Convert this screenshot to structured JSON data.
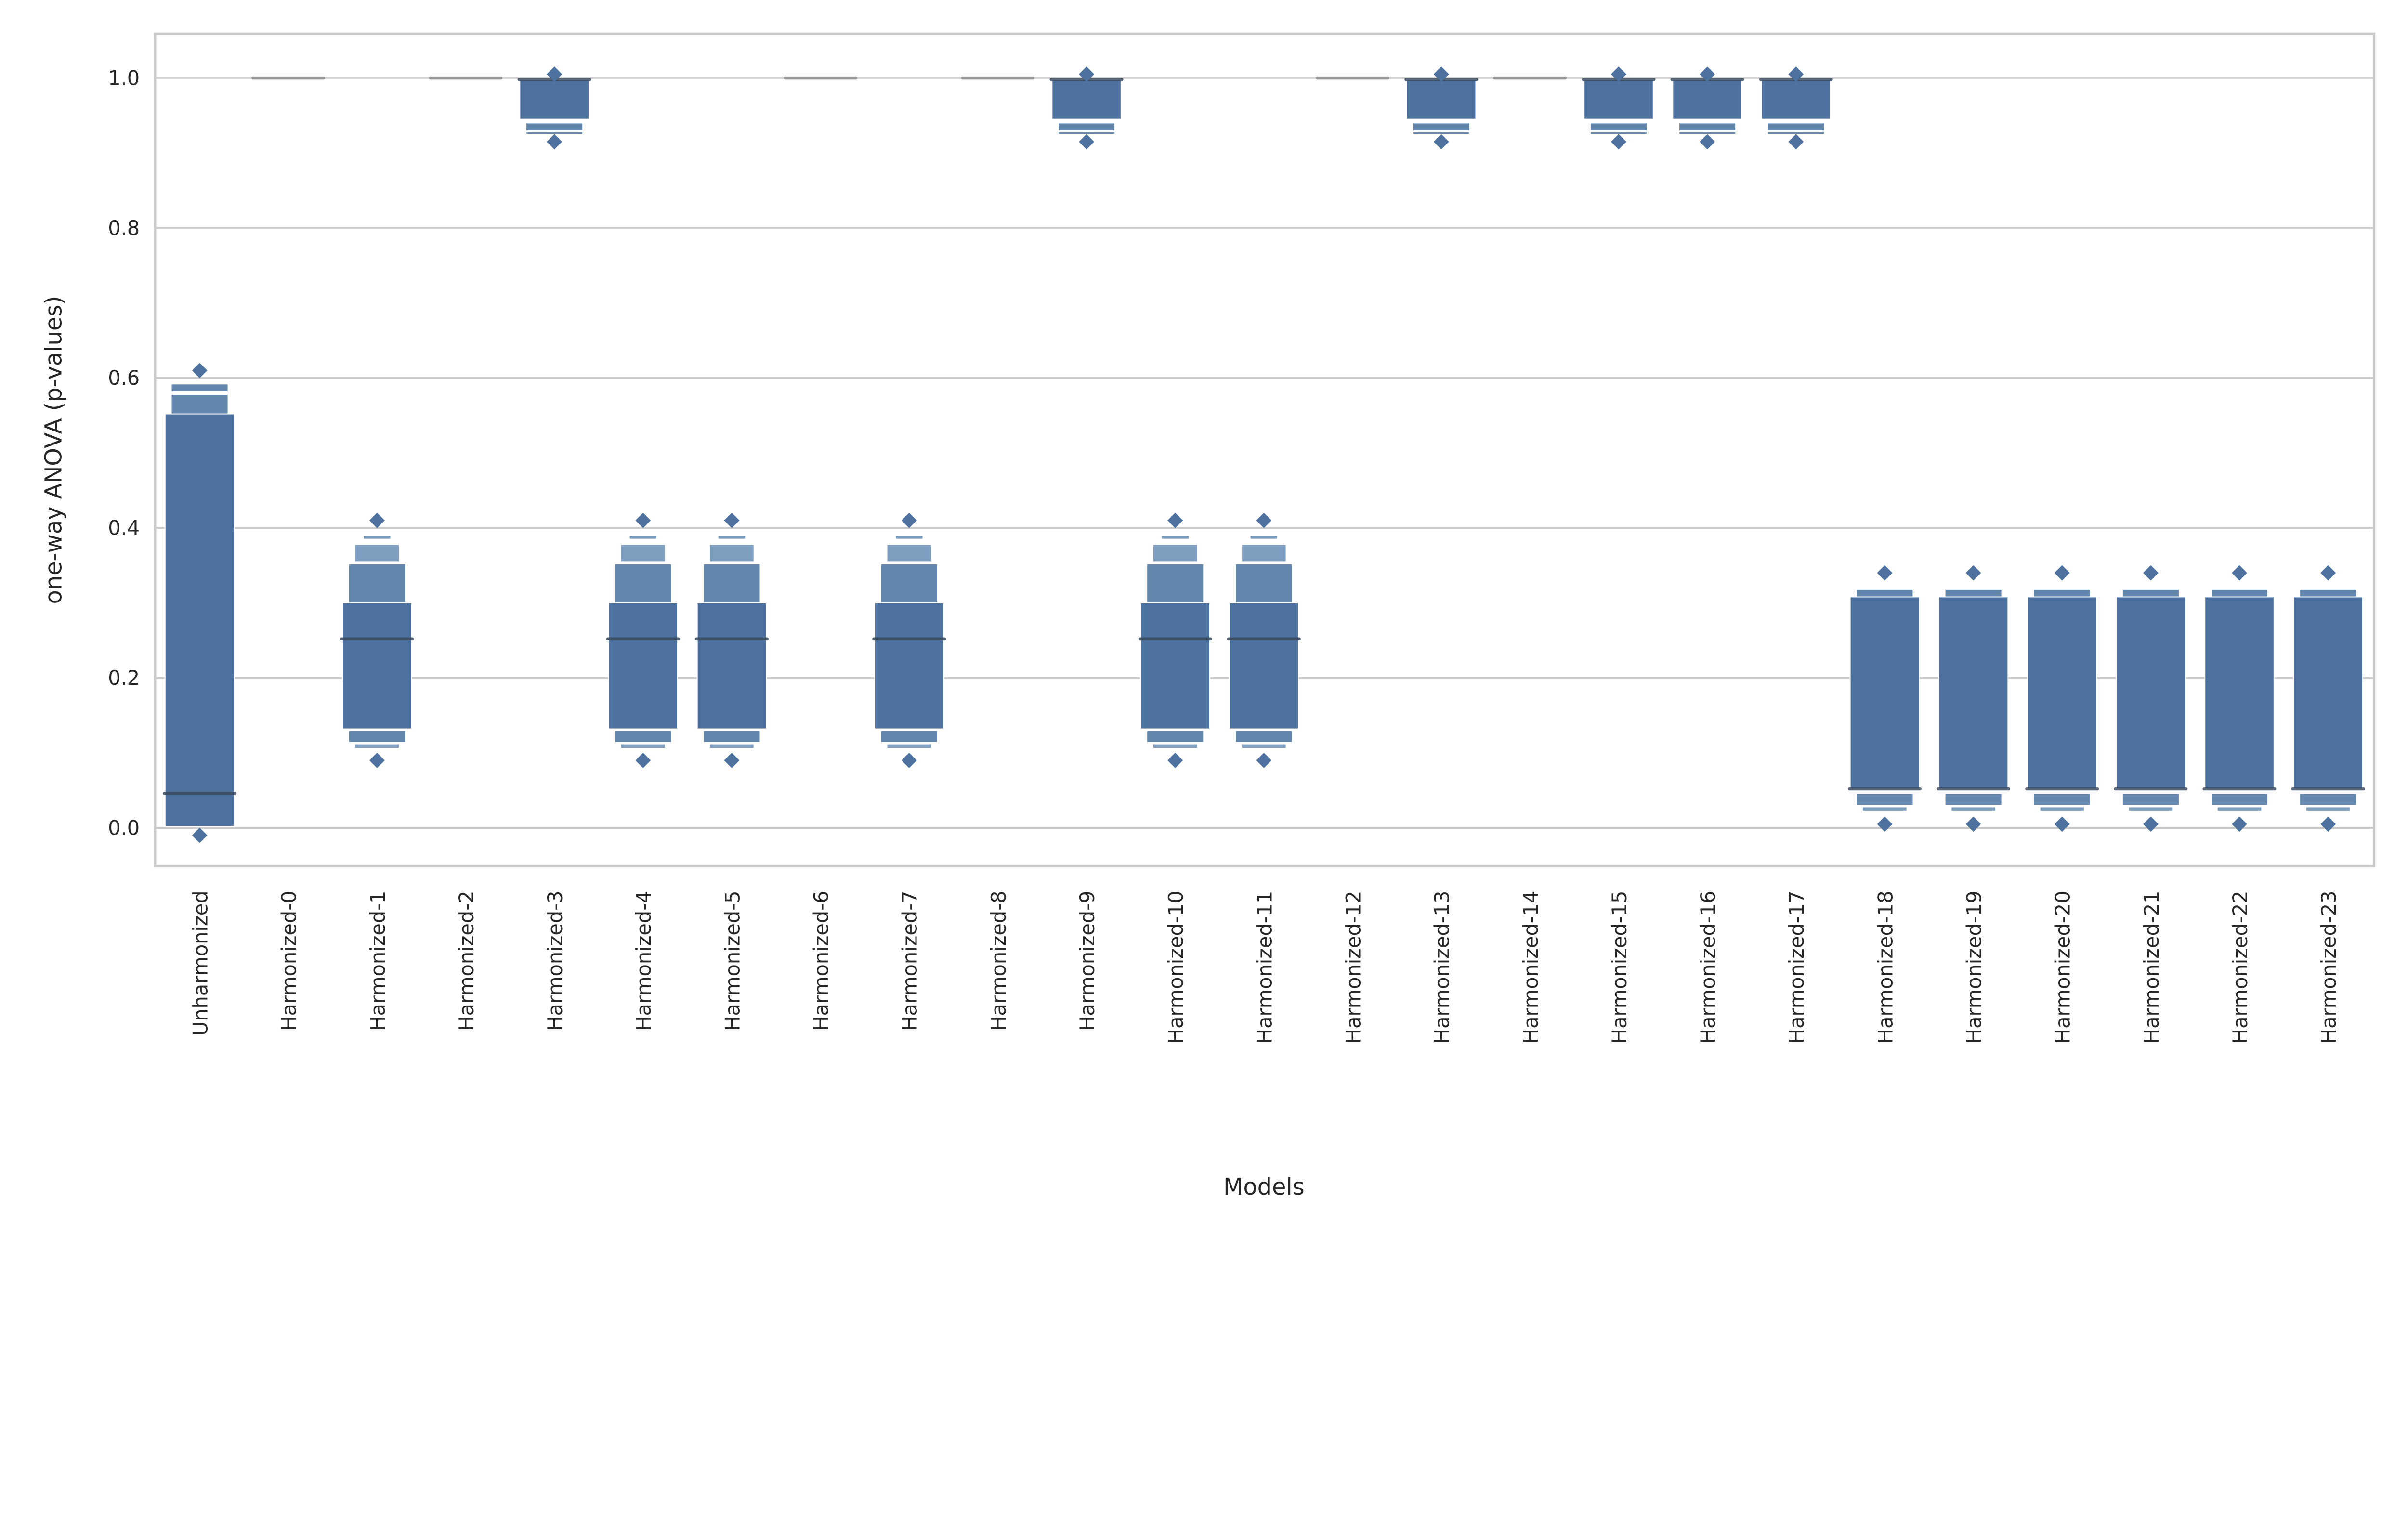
{
  "chart_data": {
    "type": "boxen",
    "title": "",
    "xlabel": "Models",
    "ylabel": "one-way ANOVA (p-values)",
    "ylim": [
      -0.051,
      1.059
    ],
    "yticks": [
      "0.0",
      "0.2",
      "0.4",
      "0.6",
      "0.8",
      "1.0"
    ],
    "ytick_values": [
      0,
      0.2,
      0.4,
      0.6,
      0.8,
      1.0
    ],
    "grid": true,
    "colors": {
      "level1": "#4e72a0",
      "level2": "#6488ad",
      "level3": "#7f9fc0",
      "median": "#3a4a5e",
      "grid": "#cccccc"
    },
    "categories": [
      "Unharmonized",
      "Harmonized-0",
      "Harmonized-1",
      "Harmonized-2",
      "Harmonized-3",
      "Harmonized-4",
      "Harmonized-5",
      "Harmonized-6",
      "Harmonized-7",
      "Harmonized-8",
      "Harmonized-9",
      "Harmonized-10",
      "Harmonized-11",
      "Harmonized-12",
      "Harmonized-13",
      "Harmonized-14",
      "Harmonized-15",
      "Harmonized-16",
      "Harmonized-17",
      "Harmonized-18",
      "Harmonized-19",
      "Harmonized-20",
      "Harmonized-21",
      "Harmonized-22",
      "Harmonized-23"
    ],
    "distribution_types": {
      "A": {
        "levels": [
          [
            0.002,
            0.552
          ],
          [
            0.552,
            0.578
          ],
          [
            0.582,
            0.592
          ]
        ],
        "median": 0.046,
        "outliers": [
          -0.01,
          0.61
        ]
      },
      "B": {
        "levels": [
          [
            0.132,
            0.3
          ],
          [
            0.3,
            0.352
          ],
          [
            0.114,
            0.13
          ],
          [
            0.355,
            0.378
          ],
          [
            0.106,
            0.112
          ],
          [
            0.385,
            0.39
          ]
        ],
        "median": 0.252,
        "outliers": [
          0.09,
          0.41
        ]
      },
      "C": {
        "levels": [
          [
            0.945,
            0.998
          ],
          [
            0.93,
            0.94
          ],
          [
            0.925,
            0.928
          ]
        ],
        "median": 0.998,
        "outliers": [
          0.915,
          1.005
        ]
      },
      "D": {
        "levels": [],
        "median": 1.0,
        "outliers": []
      },
      "E": {
        "levels": [
          [
            0.052,
            0.308
          ],
          [
            0.308,
            0.318
          ],
          [
            0.03,
            0.046
          ],
          [
            0.022,
            0.028
          ]
        ],
        "median": 0.052,
        "outliers": [
          0.005,
          0.34
        ]
      }
    },
    "series_type": [
      "A",
      "D",
      "B",
      "D",
      "C",
      "B",
      "B",
      "D",
      "B",
      "D",
      "C",
      "B",
      "B",
      "D",
      "C",
      "D",
      "C",
      "C",
      "C",
      "E",
      "E",
      "E",
      "E",
      "E",
      "E"
    ]
  }
}
